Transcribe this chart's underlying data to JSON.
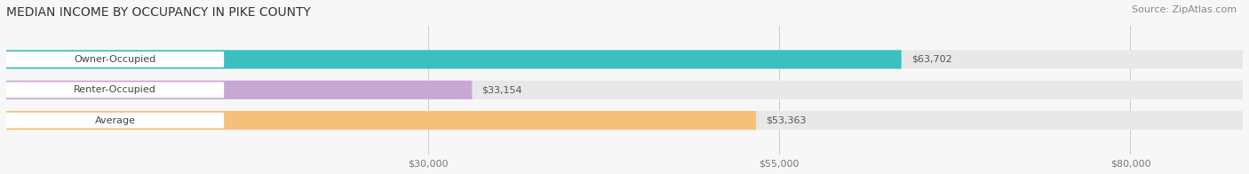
{
  "title": "MEDIAN INCOME BY OCCUPANCY IN PIKE COUNTY",
  "source": "Source: ZipAtlas.com",
  "categories": [
    "Owner-Occupied",
    "Renter-Occupied",
    "Average"
  ],
  "values": [
    63702,
    33154,
    53363
  ],
  "bar_colors": [
    "#3bbfc0",
    "#c8a8d2",
    "#f5c07a"
  ],
  "value_labels": [
    "$63,702",
    "$33,154",
    "$53,363"
  ],
  "xticks": [
    0,
    30000,
    55000,
    80000
  ],
  "xtick_labels": [
    "",
    "$30,000",
    "$55,000",
    "$80,000"
  ],
  "xlim": [
    0,
    88000
  ],
  "bg_color": "#f7f7f7",
  "bar_track_color": "#e8e8e8",
  "pill_color": "#ffffff",
  "title_fontsize": 10,
  "source_fontsize": 8,
  "label_fontsize": 8,
  "value_fontsize": 8
}
